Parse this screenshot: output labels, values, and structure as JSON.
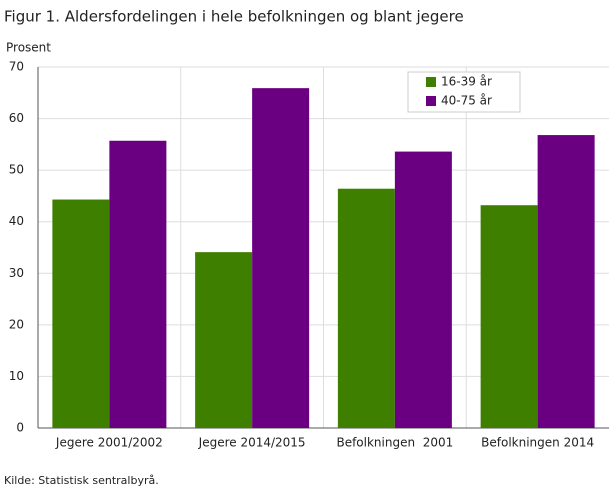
{
  "chart_data": {
    "type": "bar",
    "title": "Figur 1. Aldersfordelingen i hele befolkningen og blant jegere",
    "y_label": "Prosent",
    "source": "Kilde: Statistisk sentralbyrå.",
    "categories": [
      "Jegere 2001/2002",
      "Jegere 2014/2015",
      "Befolkningen  2001",
      "Befolkningen 2014"
    ],
    "series": [
      {
        "name": "16-39 år",
        "color": "#3f7f00",
        "values": [
          44.3,
          34.1,
          46.4,
          43.2
        ]
      },
      {
        "name": "40-75 år",
        "color": "#6a0081",
        "values": [
          55.7,
          65.9,
          53.6,
          56.8
        ]
      }
    ],
    "ylim": [
      0,
      70
    ],
    "yticks": [
      0,
      10,
      20,
      30,
      40,
      50,
      60,
      70
    ],
    "grid": true,
    "legend": "top-right"
  }
}
